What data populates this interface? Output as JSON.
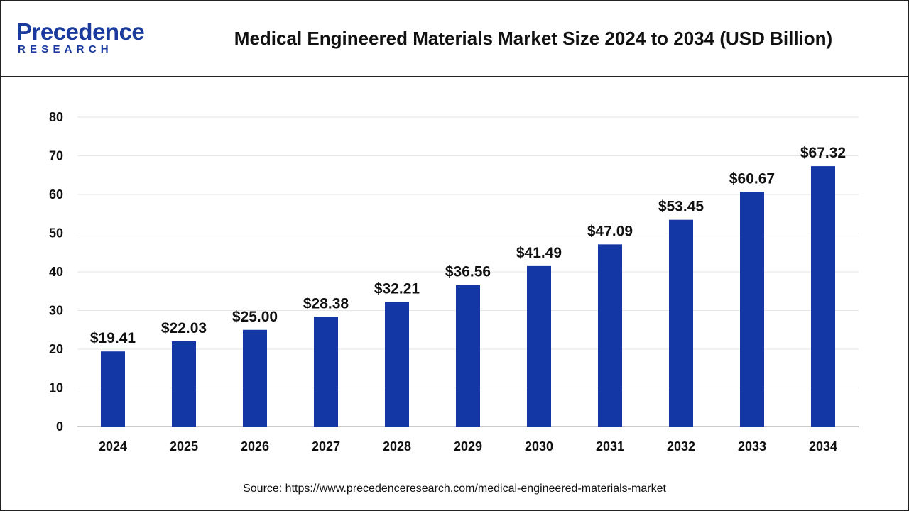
{
  "header": {
    "logo_main": "Precedence",
    "logo_sub": "RESEARCH",
    "title": "Medical Engineered Materials Market Size 2024 to 2034 (USD Billion)"
  },
  "source": "Source: https://www.precedenceresearch.com/medical-engineered-materials-market",
  "colors": {
    "bar": "#1338a6",
    "grid": "#e6e6e6",
    "axis": "#999999",
    "brand": "#1a3a9e"
  },
  "chart_data": {
    "type": "bar",
    "title": "Medical Engineered Materials Market Size 2024 to 2034 (USD Billion)",
    "xlabel": "",
    "ylabel": "",
    "categories": [
      "2024",
      "2025",
      "2026",
      "2027",
      "2028",
      "2029",
      "2030",
      "2031",
      "2032",
      "2033",
      "2034"
    ],
    "values": [
      19.41,
      22.03,
      25.0,
      28.38,
      32.21,
      36.56,
      41.49,
      47.09,
      53.45,
      60.67,
      67.32
    ],
    "data_labels": [
      "$19.41",
      "$22.03",
      "$25.00",
      "$28.38",
      "$32.21",
      "$36.56",
      "$41.49",
      "$47.09",
      "$53.45",
      "$60.67",
      "$67.32"
    ],
    "ylim": [
      0,
      80
    ],
    "yticks": [
      0,
      10,
      20,
      30,
      40,
      50,
      60,
      70,
      80
    ],
    "grid": true,
    "legend": "none"
  }
}
